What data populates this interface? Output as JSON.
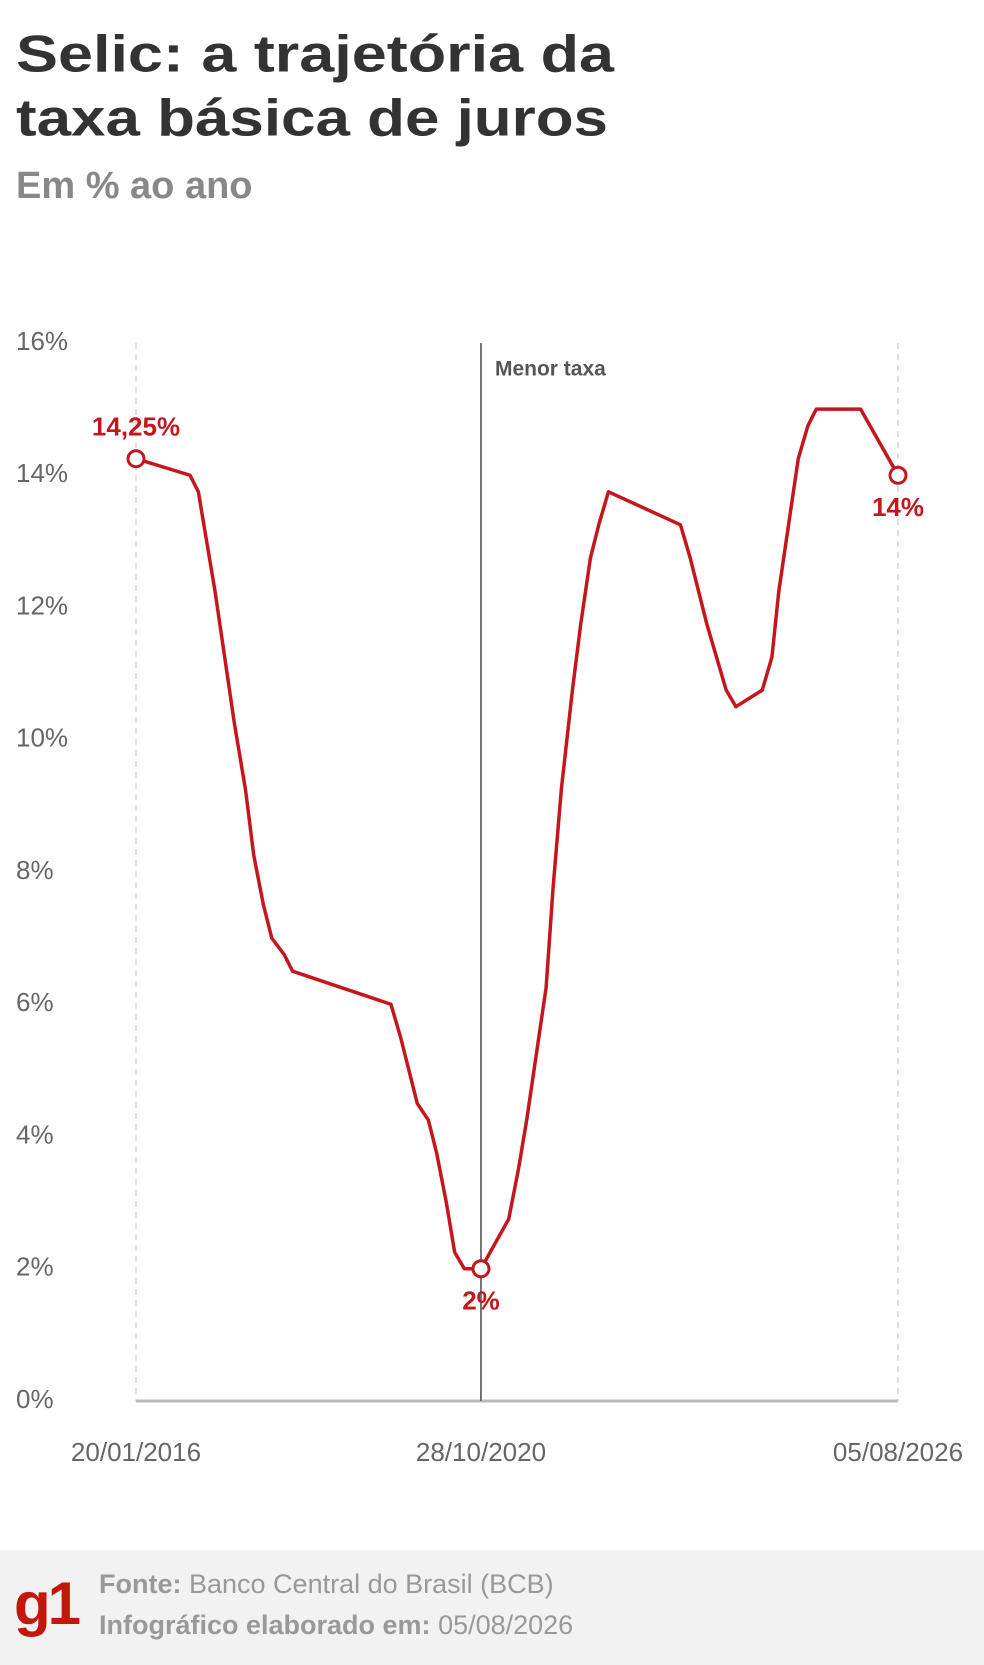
{
  "chart_data": {
    "type": "line",
    "title": [
      "Selic: a trajetória da",
      "taxa básica de juros"
    ],
    "subtitle": "Em % ao ano",
    "x": [
      "20/01/2016",
      "19/10/2016",
      "30/11/2016",
      "11/01/2017",
      "22/02/2017",
      "12/04/2017",
      "31/05/2017",
      "26/07/2017",
      "06/09/2017",
      "25/10/2017",
      "06/12/2017",
      "07/02/2018",
      "21/03/2018",
      "31/07/2019",
      "18/09/2019",
      "30/10/2019",
      "11/12/2019",
      "05/02/2020",
      "18/03/2020",
      "06/05/2020",
      "17/06/2020",
      "05/08/2020",
      "28/10/2020",
      "17/03/2021",
      "05/05/2021",
      "16/06/2021",
      "04/08/2021",
      "22/09/2021",
      "27/10/2021",
      "08/12/2021",
      "02/02/2022",
      "16/03/2022",
      "04/05/2022",
      "15/06/2022",
      "03/08/2022",
      "02/08/2023",
      "20/09/2023",
      "01/11/2023",
      "13/12/2023",
      "31/01/2024",
      "20/03/2024",
      "08/05/2024",
      "18/09/2024",
      "06/11/2024",
      "11/12/2024",
      "29/01/2025",
      "19/03/2025",
      "07/05/2025",
      "18/06/2025",
      "28/01/2026",
      "05/08/2026"
    ],
    "series": [
      {
        "color": "#c4171d",
        "values": [
          14.25,
          14,
          13.75,
          13,
          12.25,
          11.25,
          10.25,
          9.25,
          8.25,
          7.5,
          7,
          6.75,
          6.5,
          6,
          5.5,
          5,
          4.5,
          4.25,
          3.75,
          3,
          2.25,
          2,
          2,
          2.75,
          3.5,
          4.25,
          5.25,
          6.25,
          7.75,
          9.25,
          10.75,
          11.75,
          12.75,
          13.25,
          13.75,
          13.25,
          12.75,
          12.25,
          11.75,
          11.25,
          10.75,
          10.5,
          10.75,
          11.25,
          12.25,
          13.25,
          14.25,
          14.75,
          15,
          15,
          14
        ]
      }
    ],
    "xlim": [
      "20/01/2016",
      "05/08/2026"
    ],
    "xticks": [
      "20/01/2016",
      "28/10/2020",
      "05/08/2026"
    ],
    "ylim": [
      0,
      16
    ],
    "yticks": [
      {
        "value": 0,
        "label": "0%"
      },
      {
        "value": 2,
        "label": "2%"
      },
      {
        "value": 4,
        "label": "4%"
      },
      {
        "value": 6,
        "label": "6%"
      },
      {
        "value": 8,
        "label": "8%"
      },
      {
        "value": 10,
        "label": "10%"
      },
      {
        "value": 12,
        "label": "12%"
      },
      {
        "value": 14,
        "label": "14%"
      },
      {
        "value": 16,
        "label": "16%"
      }
    ],
    "annotations": [
      {
        "x": "20/01/2016",
        "value": 14.25,
        "label": "14,25%"
      },
      {
        "x": "28/10/2020",
        "value": 2,
        "label": "2%"
      },
      {
        "x": "05/08/2026",
        "value": 14,
        "label": "14%"
      }
    ],
    "reference_line": {
      "x": "28/10/2020",
      "label": "Menor taxa"
    }
  },
  "footer": {
    "logo": "g1",
    "source_label": "Fonte:",
    "source": "Banco Central do Brasil (BCB)",
    "made_label": "Infográfico elaborado em:",
    "made_date": "05/08/2026"
  }
}
